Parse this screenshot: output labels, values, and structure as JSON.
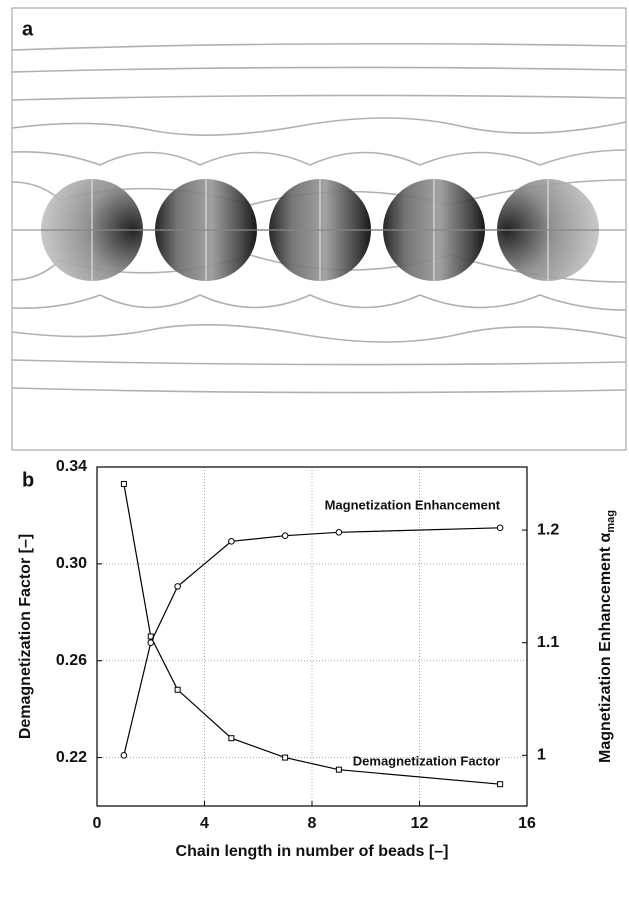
{
  "panel_a": {
    "label": "a"
  },
  "chart_data": {
    "type": "line",
    "panel_label": "b",
    "xlabel": "Chain length in number of beads [–]",
    "ylabel": "Demagnetization Factor [–]",
    "y2label": "Magnetization Enhancement α",
    "y2label_subscript": "mag",
    "x": [
      1,
      2,
      3,
      5,
      7,
      9,
      15
    ],
    "series": [
      {
        "name": "Demagnetization Factor",
        "color": "#000000",
        "marker": "square",
        "values": [
          0.333,
          0.27,
          0.248,
          0.228,
          0.22,
          0.215,
          0.209
        ]
      },
      {
        "name": "Magnetization Enhancement",
        "color": "#000000",
        "marker": "circle",
        "axis": "y2",
        "values": [
          1.0,
          1.1,
          1.15,
          1.19,
          1.195,
          1.198,
          1.202
        ]
      }
    ],
    "xlim": [
      0,
      16
    ],
    "xticks": [
      0,
      4,
      8,
      12,
      16
    ],
    "ylim": [
      0.2,
      0.34
    ],
    "yticks": [
      0.22,
      0.26,
      {
        "value": 0.3,
        "label": "0.30"
      },
      0.34
    ],
    "y2lim": [
      0.955,
      1.256
    ],
    "y2ticks": [
      1,
      1.1,
      1.2
    ],
    "grid": true
  }
}
